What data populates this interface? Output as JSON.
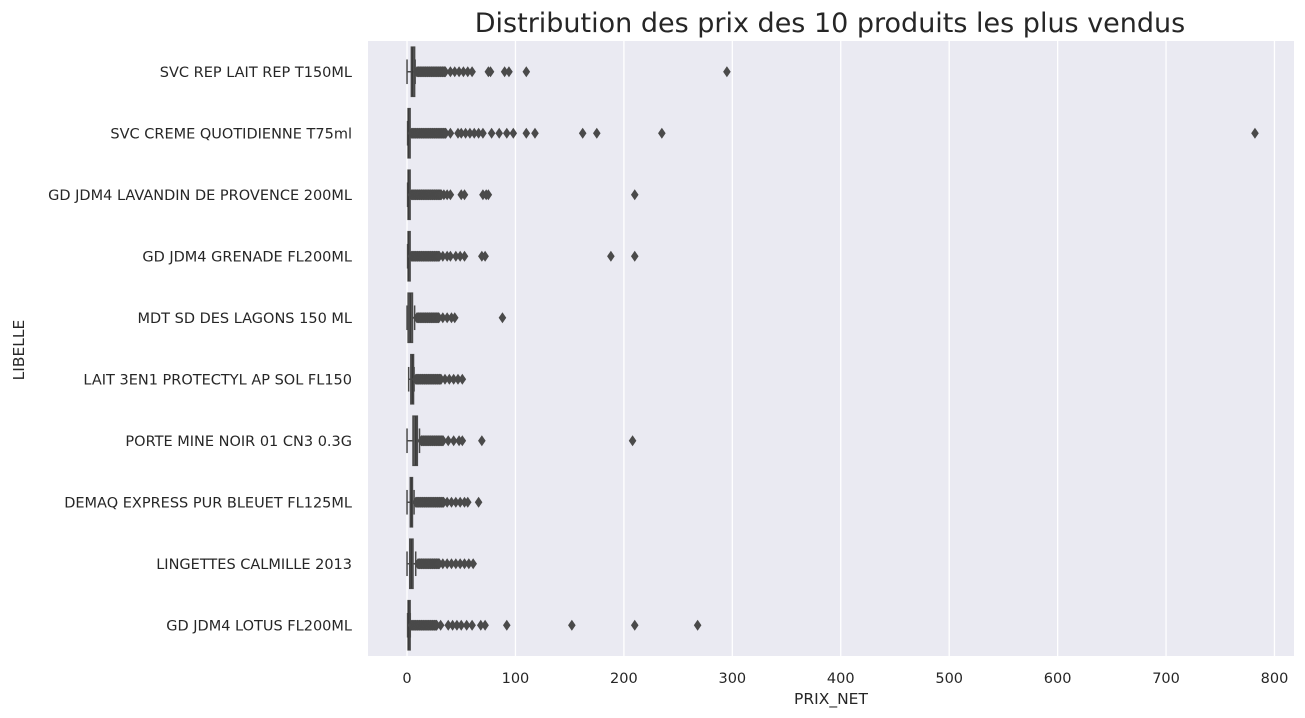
{
  "chart_data": {
    "type": "boxplot-horizontal",
    "title": "Distribution des prix des 10 produits les plus vendus",
    "xlabel": "PRIX_NET",
    "ylabel": "LIBELLE",
    "xlim": [
      -36,
      818
    ],
    "xticks": [
      0,
      100,
      200,
      300,
      400,
      500,
      600,
      700,
      800
    ],
    "grid": true,
    "colors": {
      "background": "#eaeaf2",
      "grid": "#ffffff",
      "box": "#4a4a4a",
      "text": "#262626"
    },
    "categories": [
      "SVC REP LAIT REP T150ML",
      "SVC CREME QUOTIDIENNE T75ml",
      "GD JDM4 LAVANDIN DE PROVENCE 200ML",
      "GD JDM4 GRENADE FL200ML",
      "MDT SD DES LAGONS 150 ML",
      "LAIT 3EN1 PROTECTYL AP SOL FL150",
      "PORTE MINE NOIR 01 CN3 0.3G",
      "DEMAQ EXPRESS PUR BLEUET FL125ML",
      "LINGETTES CALMILLE 2013",
      "GD JDM4 LOTUS FL200ML"
    ],
    "boxes": [
      {
        "q1": 4.0,
        "median": 5.0,
        "q3": 7.0,
        "whisker_low": 0.0,
        "whisker_high": 7.5,
        "outliers_dense_range": [
          9,
          36
        ],
        "outliers": [
          40,
          44,
          48,
          52,
          56,
          60,
          75,
          77,
          90,
          94,
          110,
          295
        ]
      },
      {
        "q1": 1.0,
        "median": 1.3,
        "q3": 1.8,
        "whisker_low": 0.5,
        "whisker_high": 2.5,
        "outliers_dense_range": [
          4,
          36
        ],
        "outliers": [
          40,
          47,
          50,
          54,
          58,
          62,
          66,
          70,
          78,
          85,
          92,
          98,
          110,
          118,
          162,
          175,
          235,
          782
        ]
      },
      {
        "q1": 1.0,
        "median": 1.3,
        "q3": 1.8,
        "whisker_low": 0.5,
        "whisker_high": 2.5,
        "outliers_dense_range": [
          4,
          32
        ],
        "outliers": [
          34,
          37,
          40,
          50,
          53,
          70,
          73,
          75,
          210
        ]
      },
      {
        "q1": 1.0,
        "median": 1.3,
        "q3": 1.8,
        "whisker_low": 0.5,
        "whisker_high": 2.5,
        "outliers_dense_range": [
          4,
          30
        ],
        "outliers": [
          33,
          37,
          40,
          45,
          49,
          53,
          69,
          72,
          188,
          210
        ]
      },
      {
        "q1": 1.0,
        "median": 3.0,
        "q3": 5.0,
        "whisker_low": 0.0,
        "whisker_high": 7.0,
        "outliers_dense_range": [
          9,
          30
        ],
        "outliers": [
          33,
          37,
          41,
          44,
          88
        ]
      },
      {
        "q1": 3.5,
        "median": 5.0,
        "q3": 6.0,
        "whisker_low": 1.5,
        "whisker_high": 6.5,
        "outliers_dense_range": [
          8,
          32
        ],
        "outliers": [
          35,
          39,
          43,
          47,
          51
        ]
      },
      {
        "q1": 5.5,
        "median": 8.0,
        "q3": 9.5,
        "whisker_low": 0.0,
        "whisker_high": 11.5,
        "outliers_dense_range": [
          13,
          34
        ],
        "outliers": [
          38,
          43,
          48,
          51,
          69,
          208
        ]
      },
      {
        "q1": 3.0,
        "median": 4.0,
        "q3": 5.0,
        "whisker_low": 0.0,
        "whisker_high": 6.5,
        "outliers_dense_range": [
          8,
          34
        ],
        "outliers": [
          37,
          41,
          45,
          49,
          53,
          56,
          66
        ]
      },
      {
        "q1": 2.5,
        "median": 4.0,
        "q3": 5.5,
        "whisker_low": 0.0,
        "whisker_high": 8.0,
        "outliers_dense_range": [
          10,
          30
        ],
        "outliers": [
          33,
          37,
          41,
          45,
          49,
          53,
          57,
          61
        ]
      },
      {
        "q1": 1.0,
        "median": 1.5,
        "q3": 2.0,
        "whisker_low": 0.5,
        "whisker_high": 3.0,
        "outliers_dense_range": [
          4,
          28
        ],
        "outliers": [
          31,
          38,
          42,
          46,
          50,
          55,
          60,
          68,
          72,
          92,
          152,
          210,
          268
        ]
      }
    ]
  }
}
